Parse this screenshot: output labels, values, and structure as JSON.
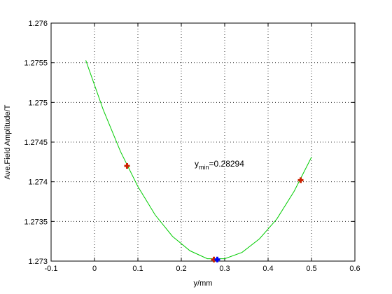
{
  "chart_data": {
    "type": "line",
    "xlabel": "y/mm",
    "ylabel": "Ave.Field Amplitude/T",
    "annotation": {
      "text": "y",
      "subscript": "min",
      "suffix": "=0.28294"
    },
    "xlim": [
      -0.1,
      0.6
    ],
    "xticks": [
      -0.1,
      0,
      0.1,
      0.2,
      0.3,
      0.4,
      0.5,
      0.6
    ],
    "ylim": [
      1.273,
      1.276
    ],
    "yticks": [
      1.273,
      1.2735,
      1.274,
      1.2745,
      1.275,
      1.2755,
      1.276
    ],
    "grid": true,
    "series": [
      {
        "color": "#00cc00",
        "marker": "none",
        "x": [
          -0.02,
          0.02,
          0.06,
          0.1,
          0.14,
          0.18,
          0.22,
          0.26,
          0.3,
          0.34,
          0.38,
          0.42,
          0.46,
          0.5
        ],
        "values": [
          1.27553,
          1.27491,
          1.27438,
          1.27394,
          1.27358,
          1.27331,
          1.27313,
          1.27303,
          1.27303,
          1.27311,
          1.27328,
          1.27353,
          1.27388,
          1.27431
        ]
      },
      {
        "color": "#cc2200",
        "marker": "plus",
        "x": [
          0.075,
          0.275,
          0.475
        ],
        "values": [
          1.2742,
          1.27302,
          1.27402
        ]
      },
      {
        "color": "#0000ff",
        "marker": "plus",
        "x": [
          0.283
        ],
        "values": [
          1.27302
        ]
      }
    ]
  }
}
